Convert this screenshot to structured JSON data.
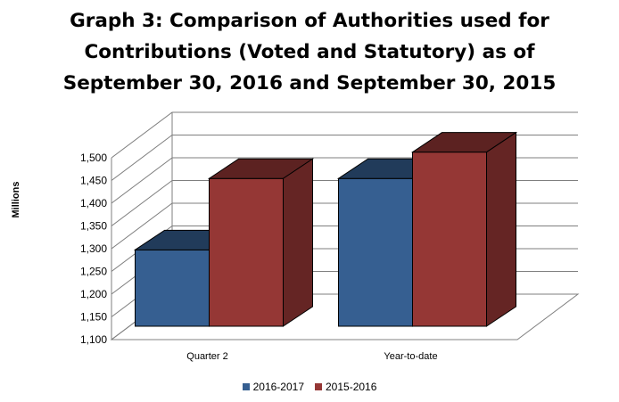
{
  "title_lines": [
    "Graph 3: Comparison of Authorities used for",
    "Contributions (Voted and Statutory) as of",
    "September 30, 2016 and September 30, 2015"
  ],
  "chart_data": {
    "type": "bar",
    "three_d": true,
    "title": "Graph 3: Comparison of Authorities used for Contributions (Voted and Statutory) as of September 30, 2016 and September 30, 2015",
    "xlabel": "",
    "ylabel": "Millions",
    "ylim": [
      1100,
      1500
    ],
    "yticks": [
      "1,100",
      "1,150",
      "1,200",
      "1,250",
      "1,300",
      "1,350",
      "1,400",
      "1,450",
      "1,500"
    ],
    "categories": [
      "Quarter 2",
      "Year-to-date"
    ],
    "series": [
      {
        "name": "2016-2017",
        "values": [
          1268,
          1425
        ],
        "color": "#365F91"
      },
      {
        "name": "2015-2016",
        "values": [
          1425,
          1483
        ],
        "color": "#953735"
      }
    ],
    "grid": true,
    "legend_position": "bottom"
  }
}
